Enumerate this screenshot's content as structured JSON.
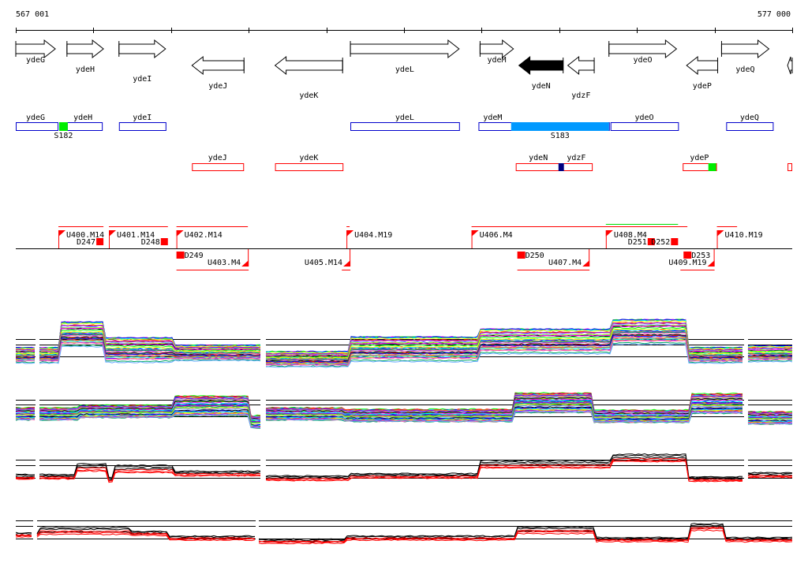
{
  "coords": {
    "start": "567 001",
    "end": "577 000",
    "range": [
      567001,
      577000
    ]
  },
  "colors": {
    "gene_outline": "#000000",
    "gene_fill_selected": "#000000",
    "forward_box": "#0000cc",
    "reverse_box": "#ff0000",
    "s182_green": "#00ee00",
    "s183_blue": "#0099ff",
    "dark_blue": "#000080",
    "segment_red": "#ff0000",
    "green_line": "#00dd00"
  },
  "genes": [
    {
      "name": "ydeG",
      "start": 567001,
      "end": 567510,
      "strand": "+",
      "row": 0,
      "label_offset": 0
    },
    {
      "name": "ydeH",
      "start": 567660,
      "end": 568130,
      "strand": "+",
      "row": 0,
      "label_offset": 1
    },
    {
      "name": "ydeI",
      "start": 568330,
      "end": 568930,
      "strand": "+",
      "row": 0,
      "label_offset": 2
    },
    {
      "name": "ydeJ",
      "start": 569270,
      "end": 569940,
      "strand": "-",
      "row": 1,
      "label_offset": 1
    },
    {
      "name": "ydeK",
      "start": 570340,
      "end": 571210,
      "strand": "-",
      "row": 1,
      "label_offset": 2
    },
    {
      "name": "ydeL",
      "start": 571310,
      "end": 572710,
      "strand": "+",
      "row": 0,
      "label_offset": 1
    },
    {
      "name": "ydeM",
      "start": 572980,
      "end": 573410,
      "strand": "+",
      "row": 0,
      "label_offset": 0
    },
    {
      "name": "ydeN",
      "start": 573480,
      "end": 574050,
      "strand": "-",
      "row": 1,
      "label_offset": 1,
      "selected": true
    },
    {
      "name": "ydzF",
      "start": 574110,
      "end": 574450,
      "strand": "-",
      "row": 1,
      "label_offset": 2
    },
    {
      "name": "ydeO",
      "start": 574640,
      "end": 575510,
      "strand": "+",
      "row": 0,
      "label_offset": 0
    },
    {
      "name": "ydeP",
      "start": 575640,
      "end": 576040,
      "strand": "-",
      "row": 1,
      "label_offset": 1
    },
    {
      "name": "ydeQ",
      "start": 576090,
      "end": 576700,
      "strand": "+",
      "row": 0,
      "label_offset": 1
    },
    {
      "name": "",
      "start": 576940,
      "end": 577000,
      "strand": "-",
      "row": 1,
      "label_offset": 0
    }
  ],
  "forward_boxes": [
    {
      "name": "ydeG",
      "start": 567001,
      "end": 567540
    },
    {
      "name": "ydeH",
      "start": 567660,
      "end": 568110
    },
    {
      "name": "ydeI",
      "start": 568330,
      "end": 568930
    },
    {
      "name": "ydeL",
      "start": 571310,
      "end": 572710
    },
    {
      "name": "ydeM",
      "start": 572960,
      "end": 574640
    },
    {
      "name": "ydeO",
      "start": 574660,
      "end": 575530
    },
    {
      "name": "ydeQ",
      "start": 576150,
      "end": 576750
    }
  ],
  "reverse_boxes": [
    {
      "name": "ydeJ",
      "start": 569270,
      "end": 569930
    },
    {
      "name": "ydeK",
      "start": 570340,
      "end": 571210
    },
    {
      "name": "ydeN",
      "start": 573440,
      "end": 574020
    },
    {
      "name": "ydzF",
      "start": 574020,
      "end": 574420
    },
    {
      "name": "ydeP",
      "start": 575590,
      "end": 576020
    },
    {
      "name": "",
      "start": 576940,
      "end": 576990
    }
  ],
  "sites": [
    {
      "name": "S182",
      "start": 567560,
      "end": 567670,
      "track": "forward",
      "color": "#00ee00"
    },
    {
      "name": "S183",
      "start": 573380,
      "end": 574640,
      "track": "forward",
      "color": "#0099ff"
    },
    {
      "name": "",
      "start": 573990,
      "end": 574060,
      "track": "reverse",
      "color": "#000080"
    },
    {
      "name": "",
      "start": 575920,
      "end": 576020,
      "track": "reverse",
      "color": "#00ee00"
    }
  ],
  "upshifts": [
    {
      "name": "U400.M14",
      "start": 567550,
      "end": 568130,
      "strand": "+"
    },
    {
      "name": "U401.M14",
      "start": 568200,
      "end": 568960,
      "strand": "+"
    },
    {
      "name": "U402.M14",
      "start": 569070,
      "end": 569990,
      "strand": "+"
    },
    {
      "name": "U403.M4",
      "start": 569070,
      "end": 570000,
      "strand": "-"
    },
    {
      "name": "U404.M19",
      "start": 571260,
      "end": 571300,
      "strand": "+"
    },
    {
      "name": "U405.M14",
      "start": 571200,
      "end": 571310,
      "strand": "-"
    },
    {
      "name": "U406.M4",
      "start": 572870,
      "end": 575650,
      "strand": "+"
    },
    {
      "name": "U407.M4",
      "start": 573460,
      "end": 574390,
      "strand": "-"
    },
    {
      "name": "U408.M4",
      "start": 574600,
      "end": 575530,
      "strand": "+"
    },
    {
      "name": "U409.M19",
      "start": 575560,
      "end": 576000,
      "strand": "-"
    },
    {
      "name": "U410.M19",
      "start": 576030,
      "end": 576290,
      "strand": "+"
    }
  ],
  "downshifts": [
    {
      "name": "D247",
      "start": 568040,
      "end": 568130,
      "strand": "+"
    },
    {
      "name": "D248",
      "start": 568870,
      "end": 568960,
      "strand": "+"
    },
    {
      "name": "D249",
      "start": 569070,
      "end": 569170,
      "strand": "-"
    },
    {
      "name": "D250",
      "start": 573460,
      "end": 573560,
      "strand": "-"
    },
    {
      "name": "D251",
      "start": 575180,
      "end": 575230,
      "strand": "+"
    },
    {
      "name": "D252",
      "start": 575430,
      "end": 575530,
      "strand": "+"
    },
    {
      "name": "D253",
      "start": 575600,
      "end": 575700,
      "strand": "-"
    }
  ],
  "expression_panels": [
    {
      "name": "forward-strand-conditions",
      "kind": "multi"
    },
    {
      "name": "reverse-strand-conditions",
      "kind": "multi"
    },
    {
      "name": "forward-strand-summary",
      "kind": "pair"
    },
    {
      "name": "reverse-strand-summary",
      "kind": "pair"
    }
  ]
}
